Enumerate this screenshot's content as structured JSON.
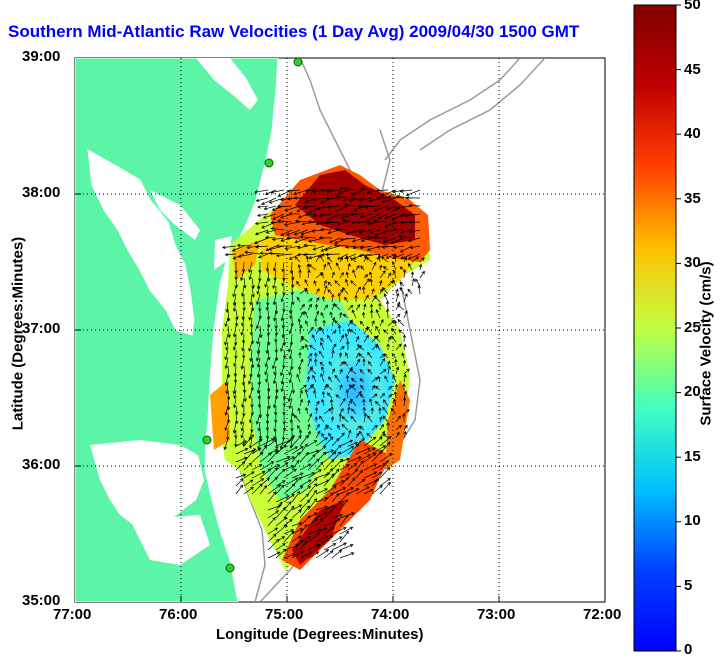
{
  "title": "Southern Mid-Atlantic Raw Velocities (1 Day Avg) 2009/04/30 1500 GMT",
  "axes": {
    "xlabel": "Longitude (Degrees:Minutes)",
    "ylabel": "Latitude (Degrees:Minutes)",
    "x_ticks": [
      "77:00",
      "76:00",
      "75:00",
      "74:00",
      "73:00",
      "72:00"
    ],
    "y_ticks": [
      "39:00",
      "38:00",
      "37:00",
      "36:00",
      "35:00"
    ]
  },
  "colorbar": {
    "label": "Surface Velocity (cm/s)",
    "min": 0,
    "max": 50,
    "ticks": [
      "50",
      "45",
      "40",
      "35",
      "30",
      "25",
      "20",
      "15",
      "10",
      "5",
      "0"
    ],
    "colormap": "jet"
  },
  "colors": {
    "land": "#5cf5a8",
    "water": "#ffffff",
    "title": "#0000ff",
    "contour": "#9a9a9a",
    "station": "#33cc33"
  },
  "chart_data": {
    "type": "heatmap",
    "title": "Southern Mid-Atlantic Raw Velocities (1 Day Avg) 2009/04/30 1500 GMT",
    "xlabel": "Longitude (Degrees:Minutes)",
    "ylabel": "Latitude (Degrees:Minutes)",
    "xlim": [
      -77,
      -72
    ],
    "ylim": [
      35,
      39
    ],
    "colorbar_range": [
      0,
      50
    ],
    "colorbar_label": "Surface Velocity (cm/s)",
    "grid": true
  }
}
